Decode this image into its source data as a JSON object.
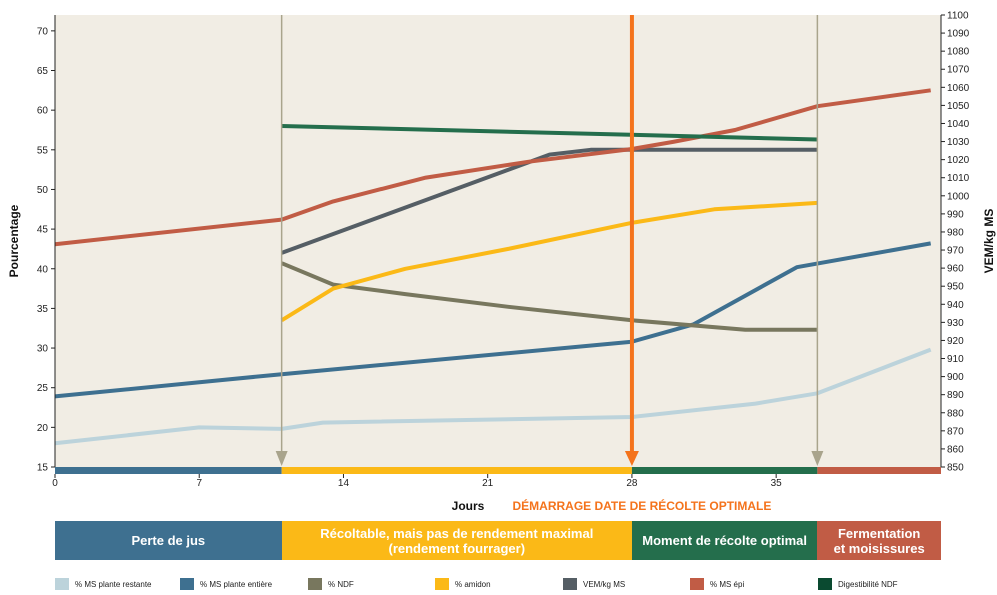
{
  "chart_data": {
    "type": "line",
    "xlabel": "Jours",
    "ylabel": "Pourcentage",
    "y2label": "VEM/kg MS",
    "xlim": [
      0,
      43
    ],
    "ylim": [
      15,
      72
    ],
    "y2lim": [
      850,
      1100
    ],
    "x_ticks": [
      0,
      7,
      14,
      21,
      28,
      35
    ],
    "y_ticks": [
      15,
      20,
      25,
      30,
      35,
      40,
      45,
      50,
      55,
      60,
      65,
      70
    ],
    "y2_ticks": [
      850,
      860,
      870,
      880,
      890,
      900,
      910,
      920,
      930,
      940,
      950,
      960,
      970,
      980,
      990,
      1000,
      1010,
      1020,
      1030,
      1040,
      1050,
      1060,
      1070,
      1080,
      1090,
      1100
    ],
    "grid": false,
    "background": "#f1ede4",
    "series": [
      {
        "name": "% MS plante restante",
        "color": "#bcd3db",
        "x": [
          0,
          7,
          11,
          13,
          28,
          34,
          37,
          42.5
        ],
        "y": [
          18,
          20,
          19.8,
          20.6,
          21.3,
          23,
          24.3,
          29.8
        ]
      },
      {
        "name": "% MS plante entière",
        "color": "#3e7090",
        "x": [
          0,
          11,
          28,
          31,
          36,
          42.5
        ],
        "y": [
          23.9,
          26.7,
          30.8,
          33,
          40.2,
          43.2
        ]
      },
      {
        "name": "% NDF",
        "color": "#78775e",
        "x": [
          11,
          13.5,
          17,
          22,
          28,
          33.5,
          37
        ],
        "y": [
          40.7,
          38,
          36.8,
          35.2,
          33.5,
          32.3,
          32.3
        ]
      },
      {
        "name": "% amidon",
        "color": "#fbb917",
        "x": [
          11,
          13.5,
          17,
          22,
          28,
          32,
          37
        ],
        "y": [
          33.5,
          37.5,
          40,
          42.5,
          45.8,
          47.5,
          48.3
        ]
      },
      {
        "name": "VEM/kg MS",
        "color": "#555e65",
        "x": [
          11,
          24,
          26,
          28,
          37
        ],
        "y": [
          42,
          54.4,
          55,
          55,
          55
        ]
      },
      {
        "name": "% MS épi",
        "color": "#c15c45",
        "x": [
          0,
          11,
          13.5,
          18,
          23,
          28,
          30,
          33,
          37,
          42.5
        ],
        "y": [
          43.1,
          46.2,
          48.5,
          51.5,
          53.5,
          55.1,
          56,
          57.5,
          60.5,
          62.5
        ]
      },
      {
        "name": "Digestibilité NDF",
        "color": "#246e4c",
        "x": [
          11,
          37
        ],
        "y": [
          58,
          56.3
        ]
      }
    ],
    "markers": [
      {
        "x": 11,
        "color": "#a9a48c"
      },
      {
        "x": 28,
        "color": "#f4731c",
        "label": "DÉMARRAGE DATE DE RÉCOLTE OPTIMALE"
      },
      {
        "x": 37,
        "color": "#a9a48c"
      }
    ],
    "phases": [
      {
        "label": "Perte de jus",
        "start": 0,
        "end": 11,
        "color": "#3e7090"
      },
      {
        "label": "Récoltable, mais pas de rendement maximal\n(rendement fourrager)",
        "start": 11,
        "end": 28,
        "color": "#fbb917"
      },
      {
        "label": "Moment de récolte optimal",
        "start": 28,
        "end": 37,
        "color": "#246e4c"
      },
      {
        "label": "Fermentation\net moisissures",
        "start": 37,
        "end": 43,
        "color": "#c15c45"
      }
    ]
  },
  "legend": [
    {
      "label": "% MS plante restante",
      "color": "#bcd3db"
    },
    {
      "label": "% MS plante entière",
      "color": "#3e7090"
    },
    {
      "label": "% NDF",
      "color": "#78775e"
    },
    {
      "label": "% amidon",
      "color": "#fbb917"
    },
    {
      "label": "VEM/kg MS",
      "color": "#555e65"
    },
    {
      "label": "% MS épi",
      "color": "#c15c45"
    },
    {
      "label": "Digestibilité NDF",
      "color": "#0a4a30"
    }
  ]
}
